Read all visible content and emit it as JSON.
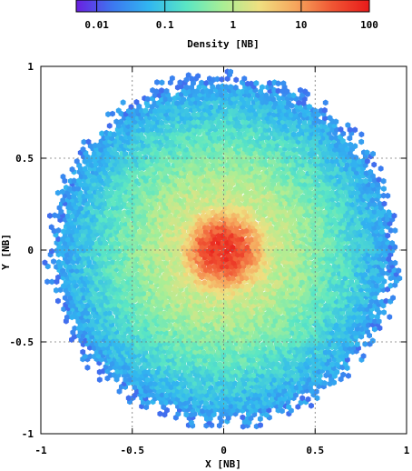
{
  "chart_data": {
    "type": "heatmap",
    "plot": "2D particle density map (hexagonal bins) of a circular distribution",
    "xlabel": "X [NB]",
    "ylabel": "Y [NB]",
    "xlim": [
      -1,
      1
    ],
    "ylim": [
      -1,
      1
    ],
    "x_ticks": [
      {
        "value": -1,
        "label": "-1"
      },
      {
        "value": -0.5,
        "label": "-0.5"
      },
      {
        "value": 0,
        "label": "0"
      },
      {
        "value": 0.5,
        "label": "0.5"
      },
      {
        "value": 1,
        "label": "1"
      }
    ],
    "y_ticks": [
      {
        "value": -1,
        "label": "-1"
      },
      {
        "value": -0.5,
        "label": "-0.5"
      },
      {
        "value": 0,
        "label": "0"
      },
      {
        "value": 0.5,
        "label": "0.5"
      },
      {
        "value": 1,
        "label": "1"
      }
    ],
    "grid": true,
    "colorbar": {
      "label": "Density [NB]",
      "scale": "log",
      "range": [
        0.005,
        100
      ],
      "ticks": [
        {
          "value": 0.01,
          "label": "0.01"
        },
        {
          "value": 0.1,
          "label": "0.1"
        },
        {
          "value": 1,
          "label": "1"
        },
        {
          "value": 10,
          "label": "10"
        },
        {
          "value": 100,
          "label": "100"
        }
      ],
      "colormap": [
        "#6a1fe0",
        "#3c78f0",
        "#31b7f0",
        "#5ae6c4",
        "#a9ee95",
        "#f0df80",
        "#f6a55c",
        "#f05533",
        "#e81a1a"
      ],
      "placement": "top"
    },
    "distribution": {
      "shape": "disk",
      "center": [
        0,
        0
      ],
      "outer_radius": 0.95,
      "core_radius": 0.12,
      "density_center": 60,
      "density_mid": 1,
      "density_edge": 0.03
    }
  }
}
